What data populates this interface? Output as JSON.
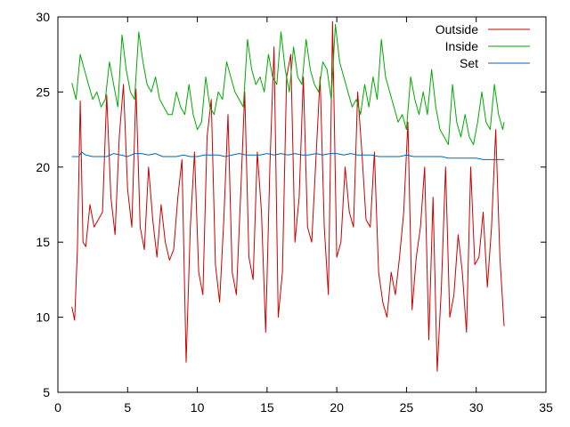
{
  "chart_data": {
    "type": "line",
    "title": "",
    "xlabel": "",
    "ylabel": "",
    "xlim": [
      0,
      35
    ],
    "ylim": [
      5,
      30
    ],
    "x_ticks": [
      0,
      5,
      10,
      15,
      20,
      25,
      30,
      35
    ],
    "y_ticks": [
      5,
      10,
      15,
      20,
      25,
      30
    ],
    "grid": false,
    "legend_position": "top-right",
    "series": [
      {
        "name": "Outside",
        "color": "#cc0000",
        "x": [
          1.0,
          1.2,
          1.4,
          1.6,
          1.8,
          2.0,
          2.3,
          2.6,
          2.9,
          3.2,
          3.5,
          3.8,
          4.1,
          4.4,
          4.7,
          5.0,
          5.3,
          5.6,
          5.9,
          6.2,
          6.5,
          6.8,
          7.1,
          7.4,
          7.7,
          8.0,
          8.3,
          8.6,
          8.9,
          9.2,
          9.5,
          9.8,
          10.1,
          10.4,
          10.7,
          11.0,
          11.3,
          11.6,
          11.9,
          12.2,
          12.5,
          12.8,
          13.1,
          13.4,
          13.7,
          14.0,
          14.3,
          14.6,
          14.9,
          15.2,
          15.5,
          15.8,
          16.1,
          16.4,
          16.7,
          17.0,
          17.3,
          17.6,
          17.9,
          18.2,
          18.5,
          18.8,
          19.1,
          19.4,
          19.7,
          20.0,
          20.3,
          20.6,
          20.9,
          21.2,
          21.5,
          21.8,
          22.1,
          22.4,
          22.7,
          23.0,
          23.3,
          23.6,
          23.9,
          24.2,
          24.5,
          24.8,
          25.1,
          25.4,
          25.7,
          26.0,
          26.3,
          26.6,
          26.9,
          27.2,
          27.5,
          27.8,
          28.1,
          28.4,
          28.7,
          29.0,
          29.3,
          29.6,
          29.9,
          30.2,
          30.5,
          30.8,
          31.1,
          31.4,
          31.7,
          32.0
        ],
        "y": [
          10.7,
          9.8,
          14.5,
          24.4,
          15.0,
          14.7,
          17.5,
          16.0,
          16.5,
          17.0,
          24.8,
          18.0,
          15.5,
          22.0,
          25.5,
          18.5,
          16.0,
          25.2,
          16.0,
          14.5,
          20.0,
          16.5,
          14.0,
          17.5,
          15.0,
          13.8,
          14.5,
          18.0,
          20.5,
          7.0,
          16.0,
          21.0,
          13.0,
          11.5,
          22.0,
          24.5,
          13.5,
          11.0,
          16.5,
          23.5,
          13.0,
          11.5,
          18.0,
          25.0,
          14.0,
          12.5,
          21.0,
          17.0,
          9.0,
          20.0,
          28.0,
          10.0,
          13.0,
          26.0,
          27.5,
          15.0,
          18.0,
          26.0,
          16.0,
          15.0,
          20.5,
          26.0,
          16.0,
          11.5,
          29.7,
          14.0,
          15.0,
          20.0,
          17.0,
          16.0,
          25.0,
          21.0,
          16.5,
          16.0,
          21.0,
          13.0,
          11.0,
          10.0,
          13.0,
          11.5,
          14.0,
          17.0,
          23.0,
          10.5,
          14.0,
          16.0,
          20.0,
          8.5,
          18.0,
          6.4,
          12.0,
          20.0,
          10.0,
          11.5,
          15.5,
          13.0,
          9.0,
          20.0,
          13.5,
          14.0,
          17.0,
          12.0,
          16.0,
          22.5,
          14.0,
          9.4
        ]
      },
      {
        "name": "Inside",
        "color": "#00aa00",
        "x": [
          1.0,
          1.3,
          1.6,
          1.9,
          2.2,
          2.5,
          2.8,
          3.1,
          3.4,
          3.7,
          4.0,
          4.3,
          4.6,
          4.9,
          5.2,
          5.5,
          5.8,
          6.1,
          6.4,
          6.7,
          7.0,
          7.3,
          7.6,
          7.9,
          8.2,
          8.5,
          8.8,
          9.1,
          9.4,
          9.7,
          10.0,
          10.3,
          10.6,
          10.9,
          11.2,
          11.5,
          11.8,
          12.1,
          12.4,
          12.7,
          13.0,
          13.3,
          13.6,
          13.9,
          14.2,
          14.5,
          14.8,
          15.1,
          15.4,
          15.7,
          16.0,
          16.3,
          16.6,
          16.9,
          17.2,
          17.5,
          17.8,
          18.1,
          18.4,
          18.7,
          19.0,
          19.3,
          19.6,
          19.9,
          20.2,
          20.5,
          20.8,
          21.1,
          21.4,
          21.7,
          22.0,
          22.3,
          22.6,
          22.9,
          23.2,
          23.5,
          23.8,
          24.1,
          24.4,
          24.7,
          25.0,
          25.3,
          25.6,
          25.9,
          26.2,
          26.5,
          26.8,
          27.1,
          27.4,
          27.7,
          28.0,
          28.3,
          28.6,
          28.9,
          29.2,
          29.5,
          29.8,
          30.1,
          30.4,
          30.7,
          31.0,
          31.3,
          31.6,
          31.9,
          32.0
        ],
        "y": [
          25.6,
          24.5,
          27.5,
          26.5,
          25.5,
          24.5,
          25.0,
          24.0,
          24.5,
          27.0,
          25.5,
          24.0,
          28.8,
          26.5,
          25.0,
          24.5,
          29.0,
          27.0,
          25.5,
          25.0,
          26.0,
          24.5,
          24.0,
          23.5,
          23.5,
          25.0,
          24.0,
          23.5,
          25.5,
          23.5,
          22.5,
          23.0,
          26.0,
          24.0,
          23.5,
          25.0,
          24.5,
          27.0,
          26.0,
          25.0,
          24.5,
          24.0,
          28.5,
          26.5,
          25.5,
          26.0,
          25.0,
          27.5,
          26.0,
          25.5,
          29.0,
          26.5,
          25.0,
          28.0,
          26.0,
          25.5,
          28.5,
          26.5,
          25.5,
          25.0,
          27.0,
          26.5,
          24.5,
          29.5,
          27.0,
          26.0,
          25.0,
          24.0,
          24.5,
          23.5,
          25.5,
          24.0,
          26.0,
          24.5,
          28.5,
          26.0,
          25.0,
          24.0,
          23.0,
          23.5,
          22.5,
          26.0,
          24.5,
          23.5,
          25.0,
          23.5,
          26.5,
          24.0,
          22.5,
          22.0,
          21.5,
          25.5,
          23.0,
          22.0,
          23.5,
          22.0,
          21.5,
          23.0,
          25.0,
          23.0,
          22.5,
          25.5,
          23.5,
          22.5,
          23.0
        ]
      },
      {
        "name": "Set",
        "color": "#0066bb",
        "x": [
          1.0,
          1.5,
          1.7,
          2.0,
          2.5,
          3.0,
          3.5,
          4.0,
          4.5,
          5.0,
          5.5,
          6.0,
          6.5,
          7.0,
          7.5,
          8.0,
          8.5,
          9.0,
          9.5,
          10.0,
          10.5,
          11.0,
          11.5,
          12.0,
          12.5,
          13.0,
          13.5,
          14.0,
          14.5,
          15.0,
          15.5,
          16.0,
          16.5,
          17.0,
          17.5,
          18.0,
          18.5,
          19.0,
          19.5,
          20.0,
          20.5,
          21.0,
          21.5,
          22.0,
          22.5,
          23.0,
          23.5,
          24.0,
          24.5,
          25.0,
          25.5,
          26.0,
          26.5,
          27.0,
          27.5,
          28.0,
          28.5,
          29.0,
          29.5,
          30.0,
          30.5,
          31.0,
          31.5,
          32.0
        ],
        "y": [
          20.7,
          20.7,
          21.0,
          20.8,
          20.7,
          20.7,
          20.7,
          20.9,
          20.8,
          20.7,
          20.9,
          20.9,
          20.8,
          20.9,
          20.7,
          20.7,
          20.7,
          20.8,
          20.7,
          20.7,
          20.8,
          20.8,
          20.8,
          20.7,
          20.8,
          20.9,
          20.8,
          20.8,
          20.8,
          20.9,
          20.8,
          20.9,
          20.8,
          20.9,
          20.8,
          20.8,
          20.9,
          20.8,
          20.9,
          20.9,
          20.8,
          20.9,
          20.8,
          20.8,
          20.8,
          20.7,
          20.7,
          20.7,
          20.7,
          20.8,
          20.7,
          20.7,
          20.7,
          20.7,
          20.7,
          20.6,
          20.6,
          20.6,
          20.6,
          20.6,
          20.5,
          20.5,
          20.5,
          20.5
        ]
      }
    ]
  }
}
